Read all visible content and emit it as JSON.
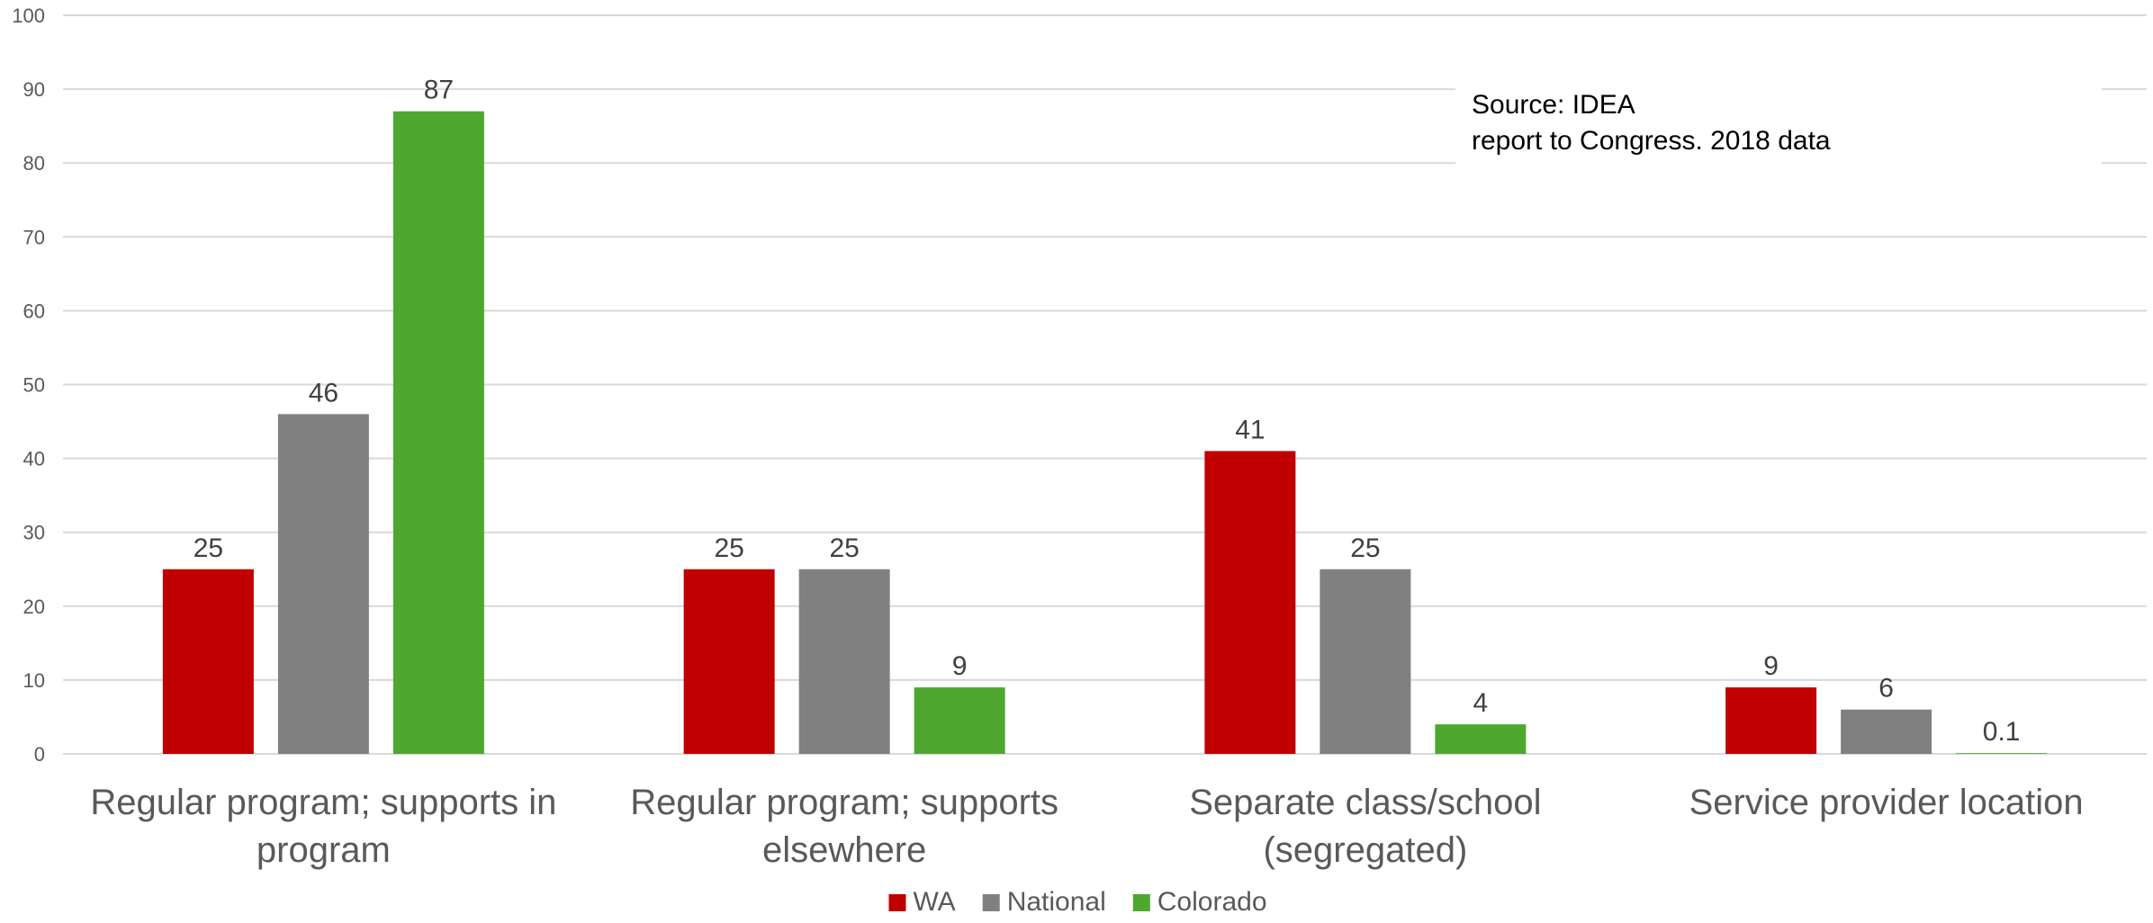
{
  "chart_data": {
    "type": "bar",
    "categories": [
      [
        "Regular program; supports in",
        "program"
      ],
      [
        "Regular program; supports",
        "elsewhere"
      ],
      [
        "Separate class/school",
        "(segregated)"
      ],
      [
        "Service provider location"
      ]
    ],
    "series": [
      {
        "name": "WA",
        "color": "#c00000",
        "values": [
          25,
          25,
          41,
          9
        ],
        "labels": [
          "25",
          "25",
          "41",
          "9"
        ]
      },
      {
        "name": "National",
        "color": "#808080",
        "values": [
          46,
          25,
          25,
          6
        ],
        "labels": [
          "46",
          "25",
          "25",
          "6"
        ]
      },
      {
        "name": "Colorado",
        "color": "#4ea72e",
        "values": [
          87,
          9,
          4,
          0.1
        ],
        "labels": [
          "87",
          "9",
          "4",
          "0.1"
        ]
      }
    ],
    "ylim": [
      0,
      100
    ],
    "yticks": [
      "0",
      "10",
      "20",
      "30",
      "40",
      "50",
      "60",
      "70",
      "80",
      "90",
      "100"
    ],
    "grid": true,
    "legend_position": "bottom",
    "title": "",
    "xlabel": "",
    "ylabel": "",
    "annotation": {
      "lines": [
        "Source: IDEA",
        "report to Congress. 2018 data"
      ]
    }
  }
}
